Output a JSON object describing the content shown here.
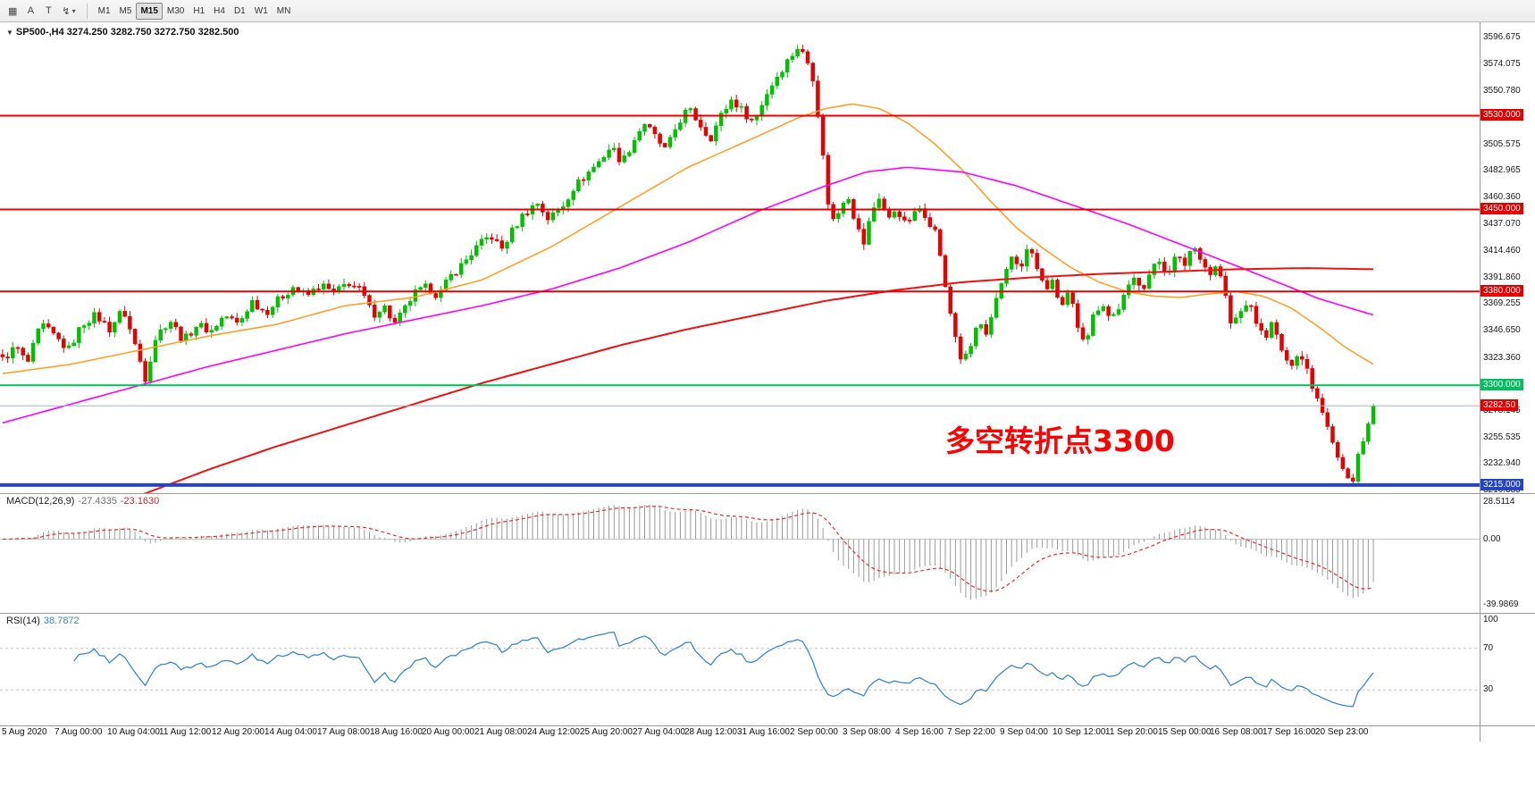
{
  "toolbar": {
    "icons": [
      {
        "name": "chart-window-icon",
        "glyph": "▦"
      },
      {
        "name": "cursor-tool-icon",
        "glyph": "A"
      },
      {
        "name": "text-tool-icon",
        "glyph": "T"
      },
      {
        "name": "indicators-icon",
        "glyph": "↯",
        "caret": "▾"
      }
    ],
    "timeframes": [
      {
        "label": "M1",
        "active": false
      },
      {
        "label": "M5",
        "active": false
      },
      {
        "label": "M15",
        "active": true
      },
      {
        "label": "M30",
        "active": false
      },
      {
        "label": "H1",
        "active": false
      },
      {
        "label": "H4",
        "active": false
      },
      {
        "label": "D1",
        "active": false
      },
      {
        "label": "W1",
        "active": false
      },
      {
        "label": "MN",
        "active": false
      }
    ]
  },
  "chart": {
    "collapse_icon": "▼",
    "symbol_line": "SP500-,H4 3274.250 3282.750 3272.750 3282.500",
    "annotation": "多空转折点3300",
    "annotation_color": "#ff0000",
    "up_color": "#00c000",
    "down_color": "#e60000",
    "price_axis_range": [
      3210.335,
      3596.675
    ],
    "levels": [
      {
        "price": 3530.0,
        "label": "3530.000",
        "color": "#e60000",
        "thickness": 2
      },
      {
        "price": 3450.0,
        "label": "3450.000",
        "color": "#e60000",
        "thickness": 2
      },
      {
        "price": 3380.0,
        "label": "3380.000",
        "color": "#e60000",
        "thickness": 2
      },
      {
        "price": 3300.0,
        "label": "3300.000",
        "color": "#00c060",
        "thickness": 2
      },
      {
        "price": 3215.0,
        "label": "3215.000",
        "color": "#2544cc",
        "thickness": 4
      }
    ],
    "current_price": {
      "price": 3282.5,
      "label": "3282.50",
      "line_color": "#9fb4bf",
      "badge_color": "#e60000"
    },
    "axis_labels": [
      {
        "price": 3596.675,
        "label": "3596.675"
      },
      {
        "price": 3574.075,
        "label": "3574.075"
      },
      {
        "price": 3550.78,
        "label": "3550.780"
      },
      {
        "price": 3505.575,
        "label": "3505.575"
      },
      {
        "price": 3482.965,
        "label": "3482.965"
      },
      {
        "price": 3460.36,
        "label": "3460.360"
      },
      {
        "price": 3437.07,
        "label": "3437.070"
      },
      {
        "price": 3414.46,
        "label": "3414.460"
      },
      {
        "price": 3391.86,
        "label": "3391.860"
      },
      {
        "price": 3369.255,
        "label": "3369.255"
      },
      {
        "price": 3346.65,
        "label": "3346.650"
      },
      {
        "price": 3323.36,
        "label": "3323.360"
      },
      {
        "price": 3278.145,
        "label": "3278.145"
      },
      {
        "price": 3255.535,
        "label": "3255.535"
      },
      {
        "price": 3232.94,
        "label": "3232.940"
      },
      {
        "price": 3210.335,
        "label": "3210.335"
      }
    ]
  },
  "chart_data": {
    "type": "candlestick",
    "symbol": "SP500-",
    "timeframe": "H4",
    "last_ohlc": {
      "open": 3274.25,
      "high": 3282.75,
      "low": 3272.75,
      "close": 3282.5
    },
    "bars": 270,
    "close_waypoints": [
      [
        0,
        3322
      ],
      [
        0.01,
        3333
      ],
      [
        0.018,
        3318
      ],
      [
        0.028,
        3352
      ],
      [
        0.038,
        3342
      ],
      [
        0.048,
        3330
      ],
      [
        0.058,
        3352
      ],
      [
        0.068,
        3360
      ],
      [
        0.078,
        3348
      ],
      [
        0.088,
        3365
      ],
      [
        0.098,
        3330
      ],
      [
        0.104,
        3306
      ],
      [
        0.112,
        3342
      ],
      [
        0.122,
        3356
      ],
      [
        0.132,
        3338
      ],
      [
        0.142,
        3352
      ],
      [
        0.152,
        3346
      ],
      [
        0.162,
        3360
      ],
      [
        0.172,
        3352
      ],
      [
        0.182,
        3372
      ],
      [
        0.192,
        3362
      ],
      [
        0.202,
        3374
      ],
      [
        0.212,
        3384
      ],
      [
        0.222,
        3376
      ],
      [
        0.232,
        3386
      ],
      [
        0.242,
        3378
      ],
      [
        0.252,
        3388
      ],
      [
        0.262,
        3380
      ],
      [
        0.27,
        3360
      ],
      [
        0.278,
        3368
      ],
      [
        0.286,
        3352
      ],
      [
        0.294,
        3366
      ],
      [
        0.3,
        3378
      ],
      [
        0.31,
        3384
      ],
      [
        0.318,
        3376
      ],
      [
        0.326,
        3392
      ],
      [
        0.336,
        3404
      ],
      [
        0.346,
        3418
      ],
      [
        0.356,
        3428
      ],
      [
        0.364,
        3416
      ],
      [
        0.372,
        3432
      ],
      [
        0.38,
        3446
      ],
      [
        0.39,
        3456
      ],
      [
        0.398,
        3442
      ],
      [
        0.408,
        3452
      ],
      [
        0.416,
        3468
      ],
      [
        0.426,
        3480
      ],
      [
        0.436,
        3492
      ],
      [
        0.444,
        3504
      ],
      [
        0.452,
        3490
      ],
      [
        0.46,
        3508
      ],
      [
        0.468,
        3524
      ],
      [
        0.476,
        3512
      ],
      [
        0.484,
        3500
      ],
      [
        0.492,
        3522
      ],
      [
        0.5,
        3536
      ],
      [
        0.508,
        3524
      ],
      [
        0.516,
        3510
      ],
      [
        0.524,
        3530
      ],
      [
        0.532,
        3544
      ],
      [
        0.54,
        3534
      ],
      [
        0.548,
        3524
      ],
      [
        0.556,
        3546
      ],
      [
        0.564,
        3562
      ],
      [
        0.572,
        3576
      ],
      [
        0.58,
        3588
      ],
      [
        0.586,
        3580
      ],
      [
        0.592,
        3560
      ],
      [
        0.598,
        3500
      ],
      [
        0.604,
        3438
      ],
      [
        0.61,
        3448
      ],
      [
        0.616,
        3466
      ],
      [
        0.622,
        3440
      ],
      [
        0.628,
        3420
      ],
      [
        0.634,
        3448
      ],
      [
        0.64,
        3462
      ],
      [
        0.646,
        3440
      ],
      [
        0.652,
        3452
      ],
      [
        0.658,
        3438
      ],
      [
        0.664,
        3444
      ],
      [
        0.67,
        3452
      ],
      [
        0.676,
        3440
      ],
      [
        0.682,
        3428
      ],
      [
        0.688,
        3380
      ],
      [
        0.694,
        3348
      ],
      [
        0.7,
        3318
      ],
      [
        0.706,
        3332
      ],
      [
        0.712,
        3356
      ],
      [
        0.718,
        3340
      ],
      [
        0.724,
        3368
      ],
      [
        0.73,
        3392
      ],
      [
        0.736,
        3412
      ],
      [
        0.742,
        3396
      ],
      [
        0.748,
        3418
      ],
      [
        0.754,
        3404
      ],
      [
        0.76,
        3380
      ],
      [
        0.766,
        3390
      ],
      [
        0.772,
        3362
      ],
      [
        0.778,
        3380
      ],
      [
        0.784,
        3352
      ],
      [
        0.79,
        3338
      ],
      [
        0.796,
        3360
      ],
      [
        0.802,
        3372
      ],
      [
        0.808,
        3356
      ],
      [
        0.814,
        3366
      ],
      [
        0.82,
        3380
      ],
      [
        0.826,
        3392
      ],
      [
        0.832,
        3384
      ],
      [
        0.838,
        3398
      ],
      [
        0.844,
        3406
      ],
      [
        0.85,
        3396
      ],
      [
        0.856,
        3410
      ],
      [
        0.862,
        3402
      ],
      [
        0.868,
        3420
      ],
      [
        0.874,
        3410
      ],
      [
        0.88,
        3394
      ],
      [
        0.886,
        3402
      ],
      [
        0.89,
        3388
      ],
      [
        0.896,
        3352
      ],
      [
        0.902,
        3360
      ],
      [
        0.908,
        3372
      ],
      [
        0.914,
        3356
      ],
      [
        0.92,
        3340
      ],
      [
        0.926,
        3352
      ],
      [
        0.932,
        3334
      ],
      [
        0.938,
        3314
      ],
      [
        0.944,
        3328
      ],
      [
        0.95,
        3320
      ],
      [
        0.956,
        3298
      ],
      [
        0.962,
        3282
      ],
      [
        0.968,
        3262
      ],
      [
        0.974,
        3240
      ],
      [
        0.98,
        3222
      ],
      [
        0.985,
        3216
      ],
      [
        0.99,
        3248
      ],
      [
        0.995,
        3262
      ],
      [
        1,
        3282.5
      ]
    ],
    "ma_lines": [
      {
        "name": "ma-fast-orange",
        "color": "#ffa028",
        "width": 1.6,
        "points": [
          [
            0,
            3310
          ],
          [
            0.05,
            3318
          ],
          [
            0.1,
            3330
          ],
          [
            0.15,
            3342
          ],
          [
            0.2,
            3352
          ],
          [
            0.25,
            3368
          ],
          [
            0.3,
            3375
          ],
          [
            0.35,
            3390
          ],
          [
            0.4,
            3418
          ],
          [
            0.45,
            3452
          ],
          [
            0.5,
            3486
          ],
          [
            0.55,
            3512
          ],
          [
            0.58,
            3528
          ],
          [
            0.6,
            3536
          ],
          [
            0.62,
            3540
          ],
          [
            0.64,
            3536
          ],
          [
            0.66,
            3524
          ],
          [
            0.68,
            3506
          ],
          [
            0.7,
            3484
          ],
          [
            0.72,
            3458
          ],
          [
            0.74,
            3434
          ],
          [
            0.76,
            3416
          ],
          [
            0.78,
            3400
          ],
          [
            0.8,
            3388
          ],
          [
            0.82,
            3380
          ],
          [
            0.84,
            3376
          ],
          [
            0.86,
            3375
          ],
          [
            0.88,
            3378
          ],
          [
            0.9,
            3380
          ],
          [
            0.92,
            3376
          ],
          [
            0.94,
            3366
          ],
          [
            0.96,
            3350
          ],
          [
            0.98,
            3332
          ],
          [
            1,
            3318
          ]
        ]
      },
      {
        "name": "ma-mid-magenta",
        "color": "#ff00ff",
        "width": 1.6,
        "points": [
          [
            0,
            3268
          ],
          [
            0.05,
            3284
          ],
          [
            0.1,
            3300
          ],
          [
            0.15,
            3316
          ],
          [
            0.2,
            3330
          ],
          [
            0.25,
            3344
          ],
          [
            0.3,
            3356
          ],
          [
            0.35,
            3368
          ],
          [
            0.4,
            3382
          ],
          [
            0.45,
            3400
          ],
          [
            0.5,
            3422
          ],
          [
            0.55,
            3448
          ],
          [
            0.6,
            3470
          ],
          [
            0.63,
            3482
          ],
          [
            0.66,
            3486
          ],
          [
            0.7,
            3482
          ],
          [
            0.74,
            3470
          ],
          [
            0.78,
            3454
          ],
          [
            0.82,
            3438
          ],
          [
            0.86,
            3420
          ],
          [
            0.9,
            3402
          ],
          [
            0.93,
            3388
          ],
          [
            0.96,
            3374
          ],
          [
            1,
            3360
          ]
        ]
      },
      {
        "name": "ma-slow-red",
        "color": "#ee1111",
        "width": 2,
        "points": [
          [
            0.1,
            3206
          ],
          [
            0.15,
            3228
          ],
          [
            0.2,
            3248
          ],
          [
            0.25,
            3266
          ],
          [
            0.3,
            3284
          ],
          [
            0.35,
            3302
          ],
          [
            0.4,
            3318
          ],
          [
            0.45,
            3334
          ],
          [
            0.5,
            3348
          ],
          [
            0.55,
            3360
          ],
          [
            0.6,
            3372
          ],
          [
            0.65,
            3381
          ],
          [
            0.7,
            3388
          ],
          [
            0.75,
            3392
          ],
          [
            0.8,
            3395
          ],
          [
            0.85,
            3397
          ],
          [
            0.9,
            3399
          ],
          [
            0.95,
            3400
          ],
          [
            1,
            3399
          ]
        ]
      }
    ],
    "macd": {
      "name": "MACD(12,26,9)",
      "main_value": "-27.4335",
      "signal_value": "-23.1630",
      "params": [
        12,
        26,
        9
      ],
      "axis_labels": [
        "28.5114",
        "0.00",
        "-39.9869"
      ],
      "histogram_color": "#9a9a9a",
      "signal_color": "#e03030"
    },
    "rsi": {
      "name": "RSI(14)",
      "value": "38.7872",
      "period": 14,
      "axis_labels": [
        "100",
        "70",
        "30"
      ],
      "levels": [
        70,
        30
      ],
      "line_color": "#3a88c8"
    }
  },
  "time_axis": [
    "5 Aug 2020",
    "7 Aug 00:00",
    "10 Aug 04:00",
    "11 Aug 12:00",
    "12 Aug 20:00",
    "14 Aug 04:00",
    "17 Aug 08:00",
    "18 Aug 16:00",
    "20 Aug 00:00",
    "21 Aug 08:00",
    "24 Aug 12:00",
    "25 Aug 20:00",
    "27 Aug 04:00",
    "28 Aug 12:00",
    "31 Aug 16:00",
    "2 Sep 00:00",
    "3 Sep 08:00",
    "4 Sep 16:00",
    "7 Sep 22:00",
    "9 Sep 04:00",
    "10 Sep 12:00",
    "11 Sep 20:00",
    "15 Sep 00:00",
    "16 Sep 08:00",
    "17 Sep 16:00",
    "20 Sep 23:00"
  ]
}
